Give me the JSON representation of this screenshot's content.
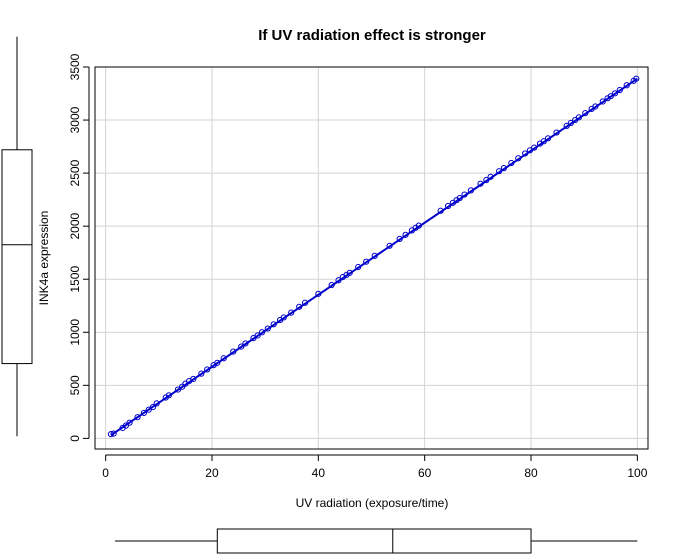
{
  "chart_data": {
    "type": "scatter",
    "title": "If UV radiation effect is stronger",
    "xlabel": "UV radiation (exposure/time)",
    "ylabel": "INK4a expression",
    "xlim": [
      -2,
      102
    ],
    "ylim": [
      -100,
      3500
    ],
    "x_ticks": [
      0,
      20,
      40,
      60,
      80,
      100
    ],
    "y_ticks": [
      0,
      500,
      1000,
      1500,
      2000,
      2500,
      3000,
      3500
    ],
    "grid": true,
    "point_color": "#0000cc",
    "line_color": "#0000cc",
    "fit_line": {
      "x": [
        1,
        100
      ],
      "y": [
        30,
        3390
      ]
    },
    "points": {
      "x": [
        1.0,
        1.5,
        3.2,
        3.8,
        4.5,
        6.0,
        7.2,
        8.1,
        8.9,
        9.6,
        11.3,
        11.9,
        13.6,
        14.4,
        15.0,
        15.7,
        16.5,
        18.0,
        19.1,
        20.3,
        21.0,
        22.2,
        24.0,
        25.5,
        26.3,
        27.8,
        28.6,
        29.4,
        30.5,
        31.6,
        32.8,
        33.5,
        34.9,
        36.4,
        37.5,
        40.0,
        42.5,
        43.8,
        44.6,
        45.3,
        45.9,
        47.5,
        49.0,
        50.6,
        53.4,
        55.3,
        56.4,
        57.6,
        58.3,
        58.9,
        63.0,
        64.4,
        65.3,
        66.0,
        66.6,
        67.5,
        68.7,
        70.5,
        71.6,
        72.4,
        74.0,
        74.9,
        76.3,
        77.6,
        78.9,
        79.8,
        80.6,
        81.7,
        82.4,
        83.2,
        84.8,
        86.7,
        87.5,
        88.3,
        89.0,
        90.2,
        91.4,
        92.1,
        93.5,
        94.4,
        95.0,
        95.8,
        96.7,
        98.0,
        99.3,
        99.8
      ],
      "y": [
        40,
        45,
        98,
        120,
        148,
        200,
        240,
        270,
        295,
        330,
        385,
        406,
        460,
        487,
        515,
        540,
        560,
        610,
        650,
        690,
        712,
        755,
        818,
        865,
        895,
        945,
        970,
        1000,
        1035,
        1075,
        1115,
        1140,
        1185,
        1240,
        1278,
        1362,
        1445,
        1490,
        1520,
        1540,
        1560,
        1615,
        1665,
        1720,
        1815,
        1880,
        1918,
        1960,
        1985,
        2005,
        2145,
        2190,
        2220,
        2245,
        2265,
        2298,
        2337,
        2400,
        2435,
        2465,
        2518,
        2547,
        2595,
        2640,
        2685,
        2715,
        2740,
        2778,
        2800,
        2828,
        2882,
        2945,
        2972,
        3000,
        3025,
        3065,
        3105,
        3128,
        3175,
        3205,
        3225,
        3252,
        3283,
        3328,
        3370,
        3390
      ]
    },
    "marginal_boxplot_x": {
      "whisker_low": 1,
      "q1": 21,
      "median": 54,
      "q3": 80,
      "whisker_high": 100
    },
    "marginal_boxplot_y": {
      "whisker_low": 30,
      "q1": 705,
      "median": 1825,
      "q3": 2720,
      "whisker_high": 3390
    }
  }
}
